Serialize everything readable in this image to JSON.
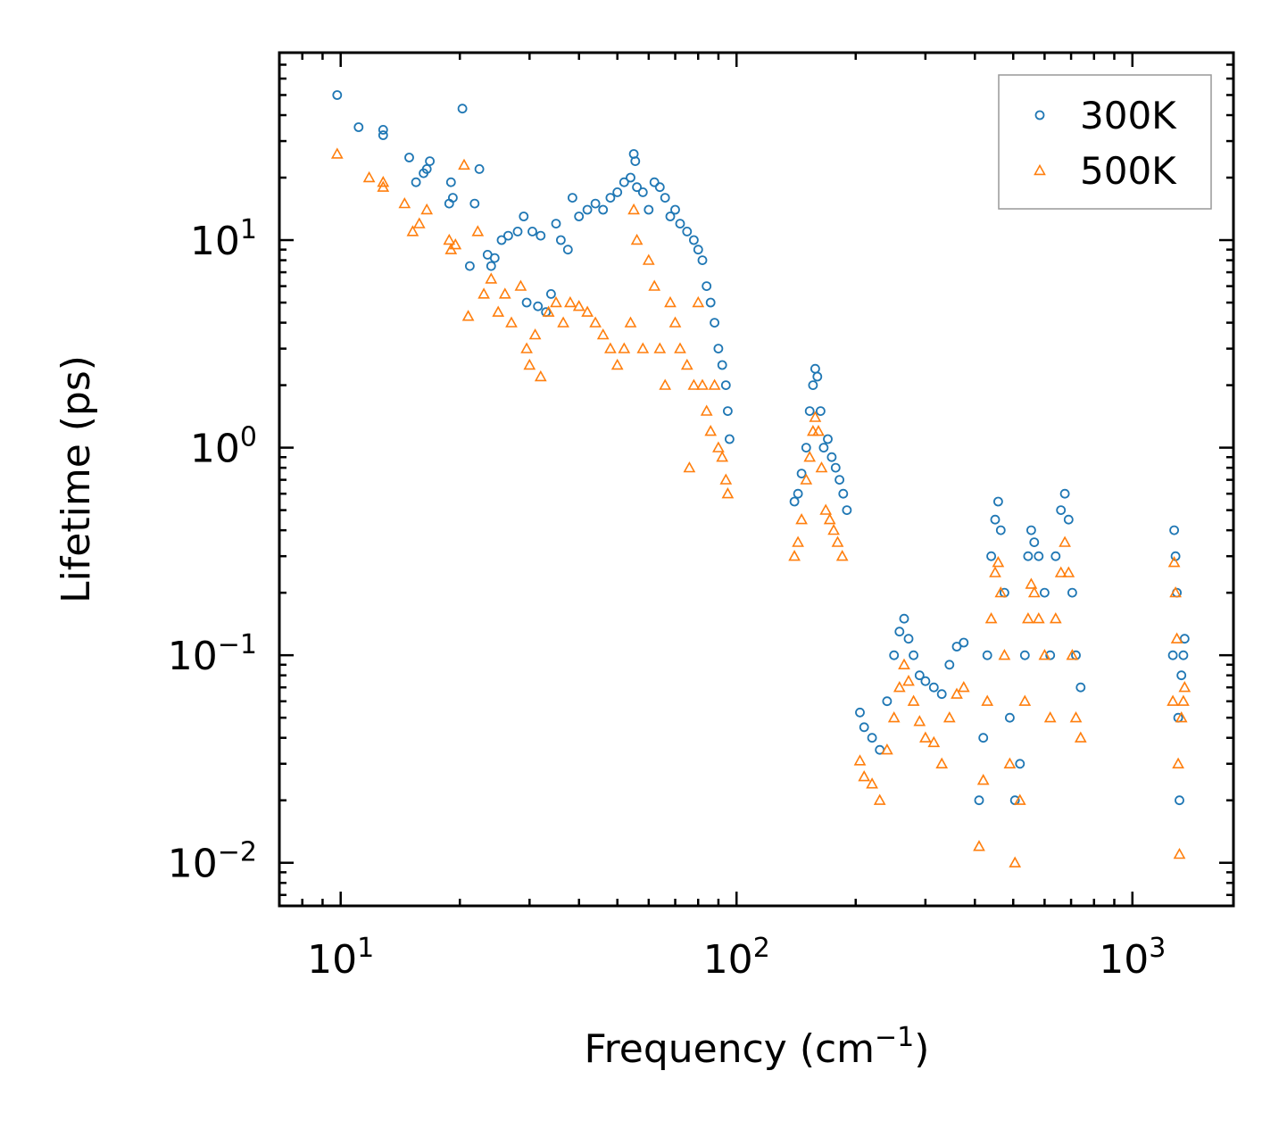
{
  "chart_data": {
    "type": "scatter",
    "title": "",
    "xlabel": "Frequency (cm",
    "xlabel_sup": "−1",
    "xlabel_end": ")",
    "ylabel": "Lifetime (ps)",
    "xscale": "log",
    "yscale": "log",
    "xlim": [
      7,
      1800
    ],
    "ylim": [
      0.0062,
      80
    ],
    "x_ticks": [
      {
        "value": 10,
        "base": "10",
        "exp": "1"
      },
      {
        "value": 100,
        "base": "10",
        "exp": "2"
      },
      {
        "value": 1000,
        "base": "10",
        "exp": "3"
      }
    ],
    "y_ticks": [
      {
        "value": 0.01,
        "base": "10",
        "exp": "−2"
      },
      {
        "value": 0.1,
        "base": "10",
        "exp": "−1"
      },
      {
        "value": 1,
        "base": "10",
        "exp": "0"
      },
      {
        "value": 10,
        "base": "10",
        "exp": "1"
      }
    ],
    "legend_position": "top-right",
    "series": [
      {
        "name": "300K",
        "marker": "circle",
        "color": "#1f77b4",
        "points": [
          [
            9.8,
            50
          ],
          [
            11.1,
            35
          ],
          [
            12.8,
            34
          ],
          [
            12.8,
            32
          ],
          [
            14.9,
            25
          ],
          [
            15.5,
            19
          ],
          [
            16.2,
            21
          ],
          [
            16.8,
            24
          ],
          [
            16.5,
            22
          ],
          [
            19.0,
            19
          ],
          [
            19.2,
            16
          ],
          [
            18.8,
            15
          ],
          [
            20.3,
            43
          ],
          [
            21.8,
            15
          ],
          [
            22.4,
            22
          ],
          [
            21.2,
            7.5
          ],
          [
            23.5,
            8.5
          ],
          [
            24.0,
            7.5
          ],
          [
            24.5,
            8.2
          ],
          [
            25.5,
            10
          ],
          [
            26.5,
            10.5
          ],
          [
            28.0,
            11
          ],
          [
            29.0,
            13
          ],
          [
            30.5,
            11
          ],
          [
            32.0,
            10.5
          ],
          [
            29.5,
            5.0
          ],
          [
            31.5,
            4.8
          ],
          [
            33.0,
            4.5
          ],
          [
            34.0,
            5.5
          ],
          [
            35.0,
            12
          ],
          [
            36.0,
            10
          ],
          [
            37.5,
            9.0
          ],
          [
            38.5,
            16
          ],
          [
            40.0,
            13
          ],
          [
            42.0,
            14
          ],
          [
            44.0,
            15
          ],
          [
            46.0,
            14
          ],
          [
            48.0,
            16
          ],
          [
            50.0,
            17
          ],
          [
            52.0,
            19
          ],
          [
            54.0,
            20
          ],
          [
            55.0,
            26
          ],
          [
            55.5,
            24
          ],
          [
            56.0,
            18
          ],
          [
            58.0,
            17
          ],
          [
            60.0,
            14
          ],
          [
            62.0,
            19
          ],
          [
            64.0,
            18
          ],
          [
            66.0,
            16
          ],
          [
            68.0,
            13
          ],
          [
            70.0,
            14
          ],
          [
            72.0,
            12
          ],
          [
            75.0,
            11
          ],
          [
            78.0,
            10
          ],
          [
            80.0,
            9
          ],
          [
            82.0,
            8
          ],
          [
            84.0,
            6
          ],
          [
            86.0,
            5
          ],
          [
            88.0,
            4
          ],
          [
            90.0,
            3
          ],
          [
            92.0,
            2.5
          ],
          [
            94.0,
            2
          ],
          [
            95.0,
            1.5
          ],
          [
            96.0,
            1.1
          ],
          [
            140.0,
            0.55
          ],
          [
            143.0,
            0.6
          ],
          [
            146.0,
            0.75
          ],
          [
            150.0,
            1.0
          ],
          [
            153.0,
            1.5
          ],
          [
            156.0,
            2.0
          ],
          [
            158.0,
            2.4
          ],
          [
            160.0,
            2.2
          ],
          [
            163.0,
            1.5
          ],
          [
            166.0,
            1.0
          ],
          [
            170.0,
            1.1
          ],
          [
            174.0,
            0.9
          ],
          [
            178.0,
            0.8
          ],
          [
            182.0,
            0.7
          ],
          [
            186.0,
            0.6
          ],
          [
            190.0,
            0.5
          ],
          [
            205.0,
            0.053
          ],
          [
            210.0,
            0.045
          ],
          [
            220.0,
            0.04
          ],
          [
            230.0,
            0.035
          ],
          [
            240.0,
            0.06
          ],
          [
            250.0,
            0.1
          ],
          [
            258.0,
            0.13
          ],
          [
            265.0,
            0.15
          ],
          [
            272.0,
            0.12
          ],
          [
            280.0,
            0.1
          ],
          [
            290.0,
            0.08
          ],
          [
            300.0,
            0.075
          ],
          [
            315.0,
            0.07
          ],
          [
            330.0,
            0.065
          ],
          [
            345.0,
            0.09
          ],
          [
            360.0,
            0.11
          ],
          [
            375.0,
            0.115
          ],
          [
            410.0,
            0.02
          ],
          [
            420.0,
            0.04
          ],
          [
            430.0,
            0.1
          ],
          [
            440.0,
            0.3
          ],
          [
            450.0,
            0.45
          ],
          [
            458.0,
            0.55
          ],
          [
            465.0,
            0.4
          ],
          [
            475.0,
            0.2
          ],
          [
            490.0,
            0.05
          ],
          [
            505.0,
            0.02
          ],
          [
            520.0,
            0.03
          ],
          [
            535.0,
            0.1
          ],
          [
            545.0,
            0.3
          ],
          [
            555.0,
            0.4
          ],
          [
            565.0,
            0.35
          ],
          [
            580.0,
            0.3
          ],
          [
            600.0,
            0.2
          ],
          [
            620.0,
            0.1
          ],
          [
            640.0,
            0.3
          ],
          [
            660.0,
            0.5
          ],
          [
            675.0,
            0.6
          ],
          [
            690.0,
            0.45
          ],
          [
            705.0,
            0.2
          ],
          [
            720.0,
            0.1
          ],
          [
            740.0,
            0.07
          ],
          [
            1265.0,
            0.1
          ],
          [
            1275.0,
            0.4
          ],
          [
            1285.0,
            0.3
          ],
          [
            1295.0,
            0.2
          ],
          [
            1305.0,
            0.05
          ],
          [
            1315.0,
            0.02
          ],
          [
            1330.0,
            0.08
          ],
          [
            1345.0,
            0.1
          ],
          [
            1355.0,
            0.12
          ]
        ]
      },
      {
        "name": "500K",
        "marker": "triangle",
        "color": "#ff7f0e",
        "points": [
          [
            9.8,
            26
          ],
          [
            11.8,
            20
          ],
          [
            12.8,
            19
          ],
          [
            12.8,
            18
          ],
          [
            14.5,
            15
          ],
          [
            15.2,
            11
          ],
          [
            15.8,
            12
          ],
          [
            16.5,
            14
          ],
          [
            18.8,
            10
          ],
          [
            19.0,
            9
          ],
          [
            19.5,
            9.5
          ],
          [
            20.5,
            23
          ],
          [
            21.0,
            4.3
          ],
          [
            22.2,
            11
          ],
          [
            23.0,
            5.5
          ],
          [
            24.0,
            6.5
          ],
          [
            25.0,
            4.5
          ],
          [
            26.0,
            5.5
          ],
          [
            27.0,
            4.0
          ],
          [
            28.5,
            6.0
          ],
          [
            29.5,
            3.0
          ],
          [
            30.0,
            2.5
          ],
          [
            31.0,
            3.5
          ],
          [
            32.0,
            2.2
          ],
          [
            33.5,
            4.5
          ],
          [
            35.0,
            5.0
          ],
          [
            36.5,
            4.0
          ],
          [
            38.0,
            5.0
          ],
          [
            40.0,
            4.8
          ],
          [
            42.0,
            4.5
          ],
          [
            44.0,
            4.0
          ],
          [
            46.0,
            3.5
          ],
          [
            48.0,
            3.0
          ],
          [
            50.0,
            2.5
          ],
          [
            52.0,
            3.0
          ],
          [
            54.0,
            4.0
          ],
          [
            55.0,
            14
          ],
          [
            56.0,
            10
          ],
          [
            58.0,
            3
          ],
          [
            60.0,
            8
          ],
          [
            62.0,
            6
          ],
          [
            64.0,
            3
          ],
          [
            66.0,
            2
          ],
          [
            68.0,
            5
          ],
          [
            70.0,
            4
          ],
          [
            72.0,
            3
          ],
          [
            75.0,
            2.5
          ],
          [
            78.0,
            2
          ],
          [
            80.0,
            5
          ],
          [
            82.0,
            2
          ],
          [
            84.0,
            1.5
          ],
          [
            86.0,
            1.2
          ],
          [
            88.0,
            2
          ],
          [
            90.0,
            1.0
          ],
          [
            92.0,
            0.9
          ],
          [
            94.0,
            0.7
          ],
          [
            95.0,
            0.6
          ],
          [
            76.0,
            0.8
          ],
          [
            140.0,
            0.3
          ],
          [
            143.0,
            0.35
          ],
          [
            146.0,
            0.45
          ],
          [
            150.0,
            0.7
          ],
          [
            153.0,
            0.9
          ],
          [
            156.0,
            1.2
          ],
          [
            158.0,
            1.4
          ],
          [
            161.0,
            1.2
          ],
          [
            164.0,
            0.8
          ],
          [
            168.0,
            0.5
          ],
          [
            172.0,
            0.45
          ],
          [
            176.0,
            0.4
          ],
          [
            180.0,
            0.35
          ],
          [
            185.0,
            0.3
          ],
          [
            205.0,
            0.031
          ],
          [
            210.0,
            0.026
          ],
          [
            220.0,
            0.024
          ],
          [
            230.0,
            0.02
          ],
          [
            240.0,
            0.035
          ],
          [
            250.0,
            0.05
          ],
          [
            258.0,
            0.07
          ],
          [
            265.0,
            0.09
          ],
          [
            272.0,
            0.075
          ],
          [
            280.0,
            0.06
          ],
          [
            290.0,
            0.048
          ],
          [
            300.0,
            0.04
          ],
          [
            315.0,
            0.038
          ],
          [
            330.0,
            0.03
          ],
          [
            345.0,
            0.05
          ],
          [
            360.0,
            0.065
          ],
          [
            375.0,
            0.07
          ],
          [
            410.0,
            0.012
          ],
          [
            420.0,
            0.025
          ],
          [
            430.0,
            0.06
          ],
          [
            440.0,
            0.15
          ],
          [
            450.0,
            0.25
          ],
          [
            458.0,
            0.28
          ],
          [
            465.0,
            0.2
          ],
          [
            475.0,
            0.1
          ],
          [
            490.0,
            0.03
          ],
          [
            505.0,
            0.01
          ],
          [
            520.0,
            0.02
          ],
          [
            535.0,
            0.06
          ],
          [
            545.0,
            0.15
          ],
          [
            555.0,
            0.22
          ],
          [
            565.0,
            0.2
          ],
          [
            580.0,
            0.15
          ],
          [
            600.0,
            0.1
          ],
          [
            620.0,
            0.05
          ],
          [
            640.0,
            0.15
          ],
          [
            660.0,
            0.25
          ],
          [
            675.0,
            0.35
          ],
          [
            690.0,
            0.25
          ],
          [
            705.0,
            0.1
          ],
          [
            720.0,
            0.05
          ],
          [
            740.0,
            0.04
          ],
          [
            1265.0,
            0.06
          ],
          [
            1275.0,
            0.28
          ],
          [
            1285.0,
            0.2
          ],
          [
            1295.0,
            0.12
          ],
          [
            1305.0,
            0.03
          ],
          [
            1315.0,
            0.011
          ],
          [
            1330.0,
            0.05
          ],
          [
            1345.0,
            0.06
          ],
          [
            1355.0,
            0.07
          ]
        ]
      }
    ]
  }
}
